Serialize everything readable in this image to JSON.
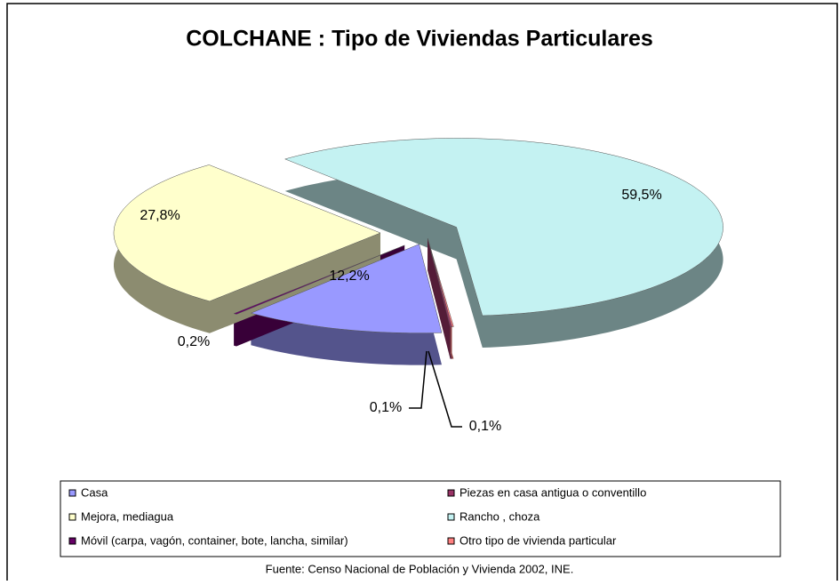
{
  "chart_data": {
    "type": "pie",
    "title": "COLCHANE : Tipo de Viviendas Particulares",
    "categories": [
      "Casa",
      "Piezas en casa antigua o conventillo",
      "Mejora, mediagua",
      "Rancho , choza",
      "Móvil (carpa, vagón, container, bote, lancha, similar)",
      "Otro tipo de vivienda particular"
    ],
    "values": [
      12.2,
      0.1,
      27.8,
      59.5,
      0.2,
      0.1
    ],
    "value_labels": [
      "12,2%",
      "0,1%",
      "27,8%",
      "59,5%",
      "0,2%",
      "0,1%"
    ],
    "colors": [
      "#9999ff",
      "#993366",
      "#ffffcc",
      "#c4f2f2",
      "#660066",
      "#ff8080"
    ],
    "legend": "bottom",
    "source": "Fuente: Censo Nacional de Población y Vivienda 2002, INE."
  }
}
